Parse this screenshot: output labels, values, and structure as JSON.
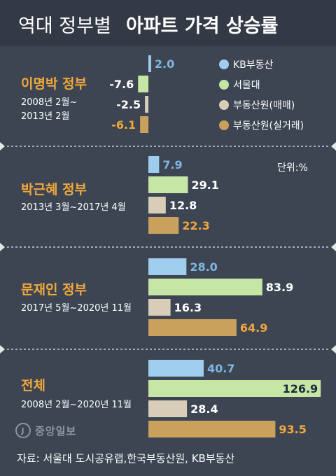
{
  "title_regular": "역대 정부별",
  "title_bold": "아파트 가격 상승률",
  "unit_label": "단위:%",
  "source": "자료: 서울대 도시공유랩,한국부동산원, KB부동산",
  "watermark": "중앙일보",
  "colors": {
    "background": "#3d4553",
    "title_band": "#333a46",
    "period_title": "#f0a83c",
    "text_light": "#ffffff",
    "separator": "#e6e6e6",
    "kb": "#9fcdee",
    "seoul": "#c5e6a4",
    "reb_trade": "#d8cdb8",
    "reb_actual": "#c9a15c"
  },
  "chart_data": {
    "type": "bar",
    "orientation": "horizontal",
    "series": [
      {
        "name": "KB부동산",
        "color": "#9fcdee",
        "label_color": "#7fb6e0"
      },
      {
        "name": "서울대",
        "color": "#c5e6a4",
        "label_color": "#ffffff"
      },
      {
        "name": "부동산원(매매)",
        "color": "#d8cdb8",
        "label_color": "#ffffff"
      },
      {
        "name": "부동산원(실거래)",
        "color": "#c9a15c",
        "label_color": "#f0a83c"
      }
    ],
    "groups": [
      {
        "name": "이명박 정부",
        "period": "2008년 2월~\n2013년 2월",
        "values": [
          2.0,
          -7.6,
          -2.5,
          -6.1
        ],
        "labels": [
          "2.0",
          "-7.6",
          "-2.5",
          "-6.1"
        ]
      },
      {
        "name": "박근혜 정부",
        "period": "2013년 3월~2017년 4월",
        "values": [
          7.9,
          29.1,
          12.8,
          22.3
        ],
        "labels": [
          "7.9",
          "29.1",
          "12.8",
          "22.3"
        ]
      },
      {
        "name": "문재인 정부",
        "period": "2017년 5월~2020년 11월",
        "values": [
          28.0,
          83.9,
          16.3,
          64.9
        ],
        "labels": [
          "28.0",
          "83.9",
          "16.3",
          "64.9"
        ]
      },
      {
        "name": "전체",
        "period": "2008년 2월~2020년 11월",
        "values": [
          40.7,
          126.9,
          28.4,
          93.5
        ],
        "labels": [
          "40.7",
          "126.9",
          "28.4",
          "93.5"
        ]
      }
    ]
  }
}
